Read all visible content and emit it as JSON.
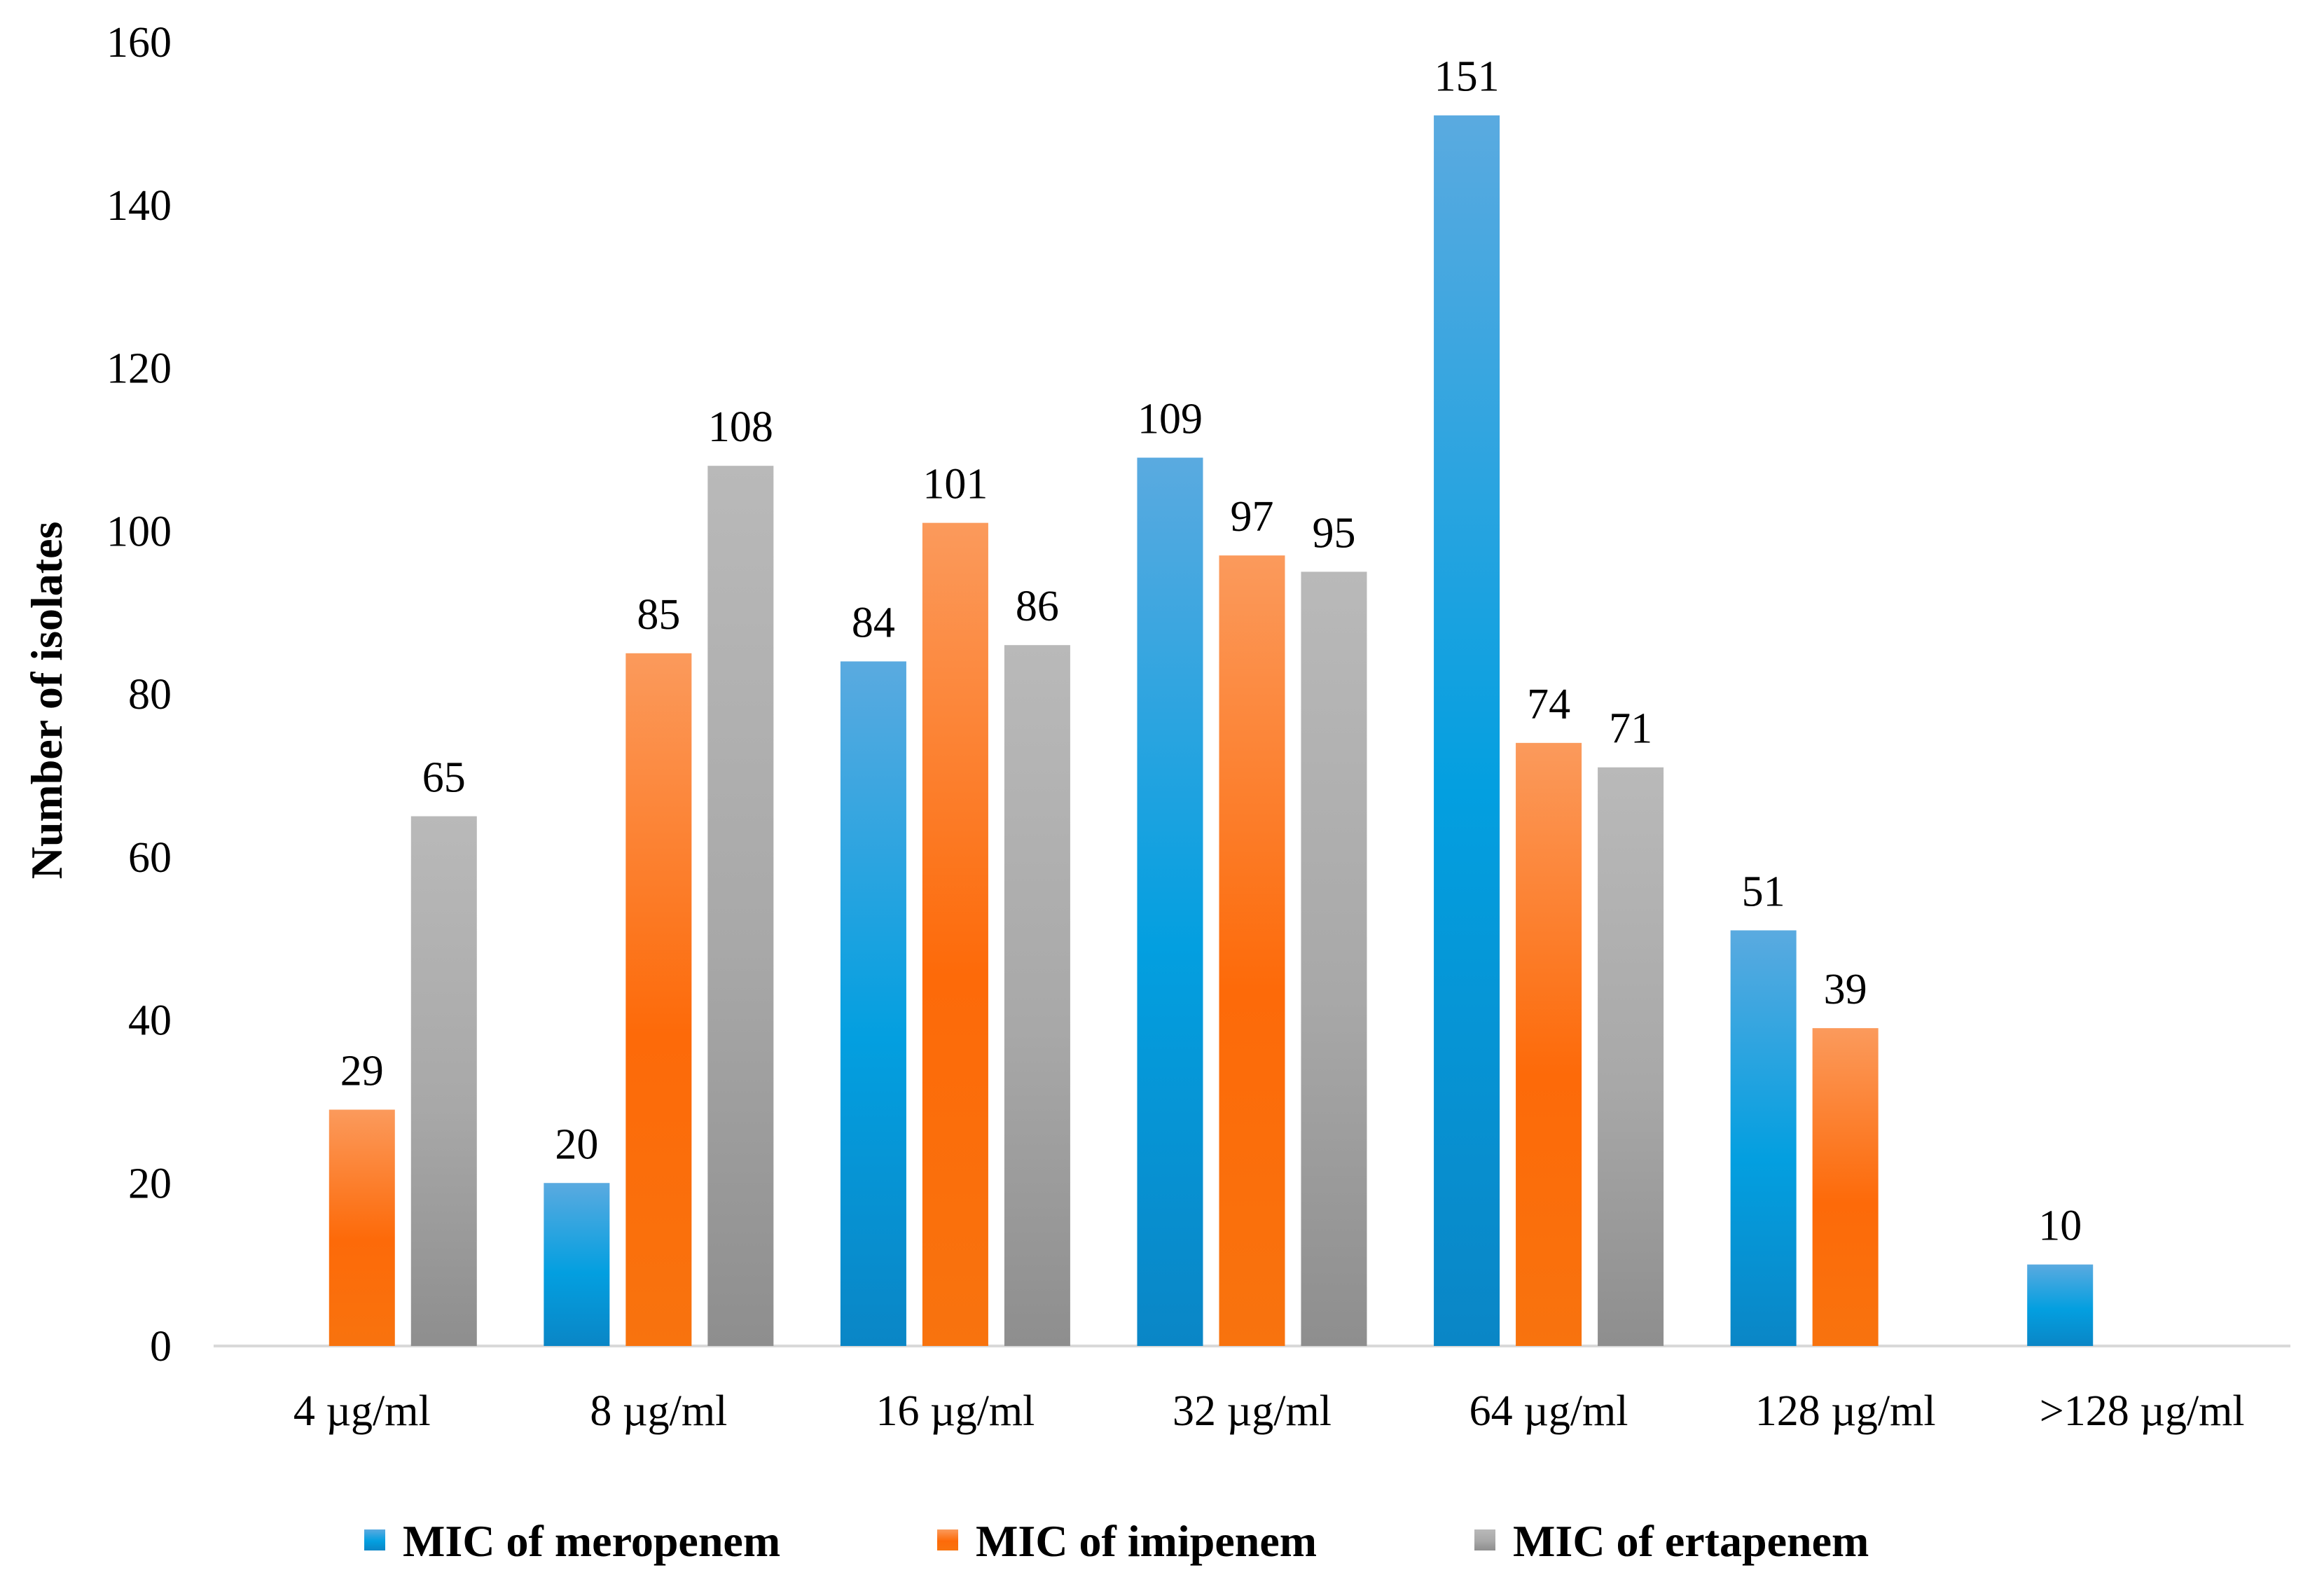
{
  "chart_data": {
    "type": "bar",
    "title": "",
    "xlabel": "",
    "ylabel": "Number of isolates",
    "ylim": [
      0,
      160
    ],
    "yticks": [
      0,
      20,
      40,
      60,
      80,
      100,
      120,
      140,
      160
    ],
    "categories": [
      "4 µg/ml",
      "8 µg/ml",
      "16 µg/ml",
      "32 µg/ml",
      "64 µg/ml",
      "128 µg/ml",
      ">128 µg/ml"
    ],
    "series": [
      {
        "name": "MIC of meropenem",
        "color_top": "#5aaae0",
        "color_mid": "#039fe0",
        "color_bottom": "#0a86c6",
        "values": [
          null,
          20,
          84,
          109,
          151,
          51,
          10
        ]
      },
      {
        "name": "MIC of imipenem",
        "color_top": "#fb9a5c",
        "color_mid": "#fd6a09",
        "color_bottom": "#f8730e",
        "values": [
          29,
          85,
          101,
          97,
          74,
          39,
          null
        ]
      },
      {
        "name": "MIC of ertapenem",
        "color_top": "#b9b9b9",
        "color_mid": "#a8a8a8",
        "color_bottom": "#8e8e8e",
        "values": [
          65,
          108,
          86,
          95,
          71,
          null,
          null
        ]
      }
    ],
    "legend_position": "bottom",
    "grid": false
  }
}
